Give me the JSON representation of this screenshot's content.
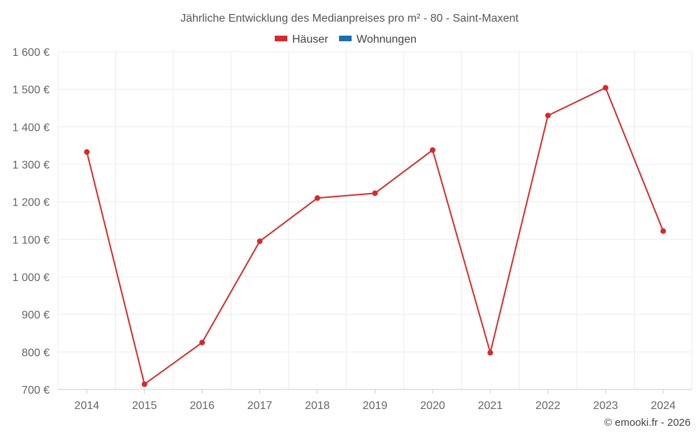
{
  "chart_data": {
    "type": "line",
    "title": "Jährliche Entwicklung des Medianpreises pro m² - 80 - Saint-Maxent",
    "legend": [
      {
        "name": "Häuser",
        "color": "#d62a2a"
      },
      {
        "name": "Wohnungen",
        "color": "#1b6fae"
      }
    ],
    "categories": [
      "2014",
      "2015",
      "2016",
      "2017",
      "2018",
      "2019",
      "2020",
      "2021",
      "2022",
      "2023",
      "2024"
    ],
    "series": [
      {
        "name": "Häuser",
        "color": "#d62a2a",
        "values": [
          1333,
          714,
          825,
          1095,
          1210,
          1223,
          1338,
          798,
          1430,
          1504,
          1122
        ]
      }
    ],
    "ylim": [
      700,
      1600
    ],
    "yticks": [
      700,
      800,
      900,
      1000,
      1100,
      1200,
      1300,
      1400,
      1500,
      1600
    ],
    "ytick_labels": [
      "700 €",
      "800 €",
      "900 €",
      "1 000 €",
      "1 100 €",
      "1 200 €",
      "1 300 €",
      "1 400 €",
      "1 500 €",
      "1 600 €"
    ],
    "grid": true,
    "legend_position": "top-center",
    "credit": "© emooki.fr - 2026"
  }
}
